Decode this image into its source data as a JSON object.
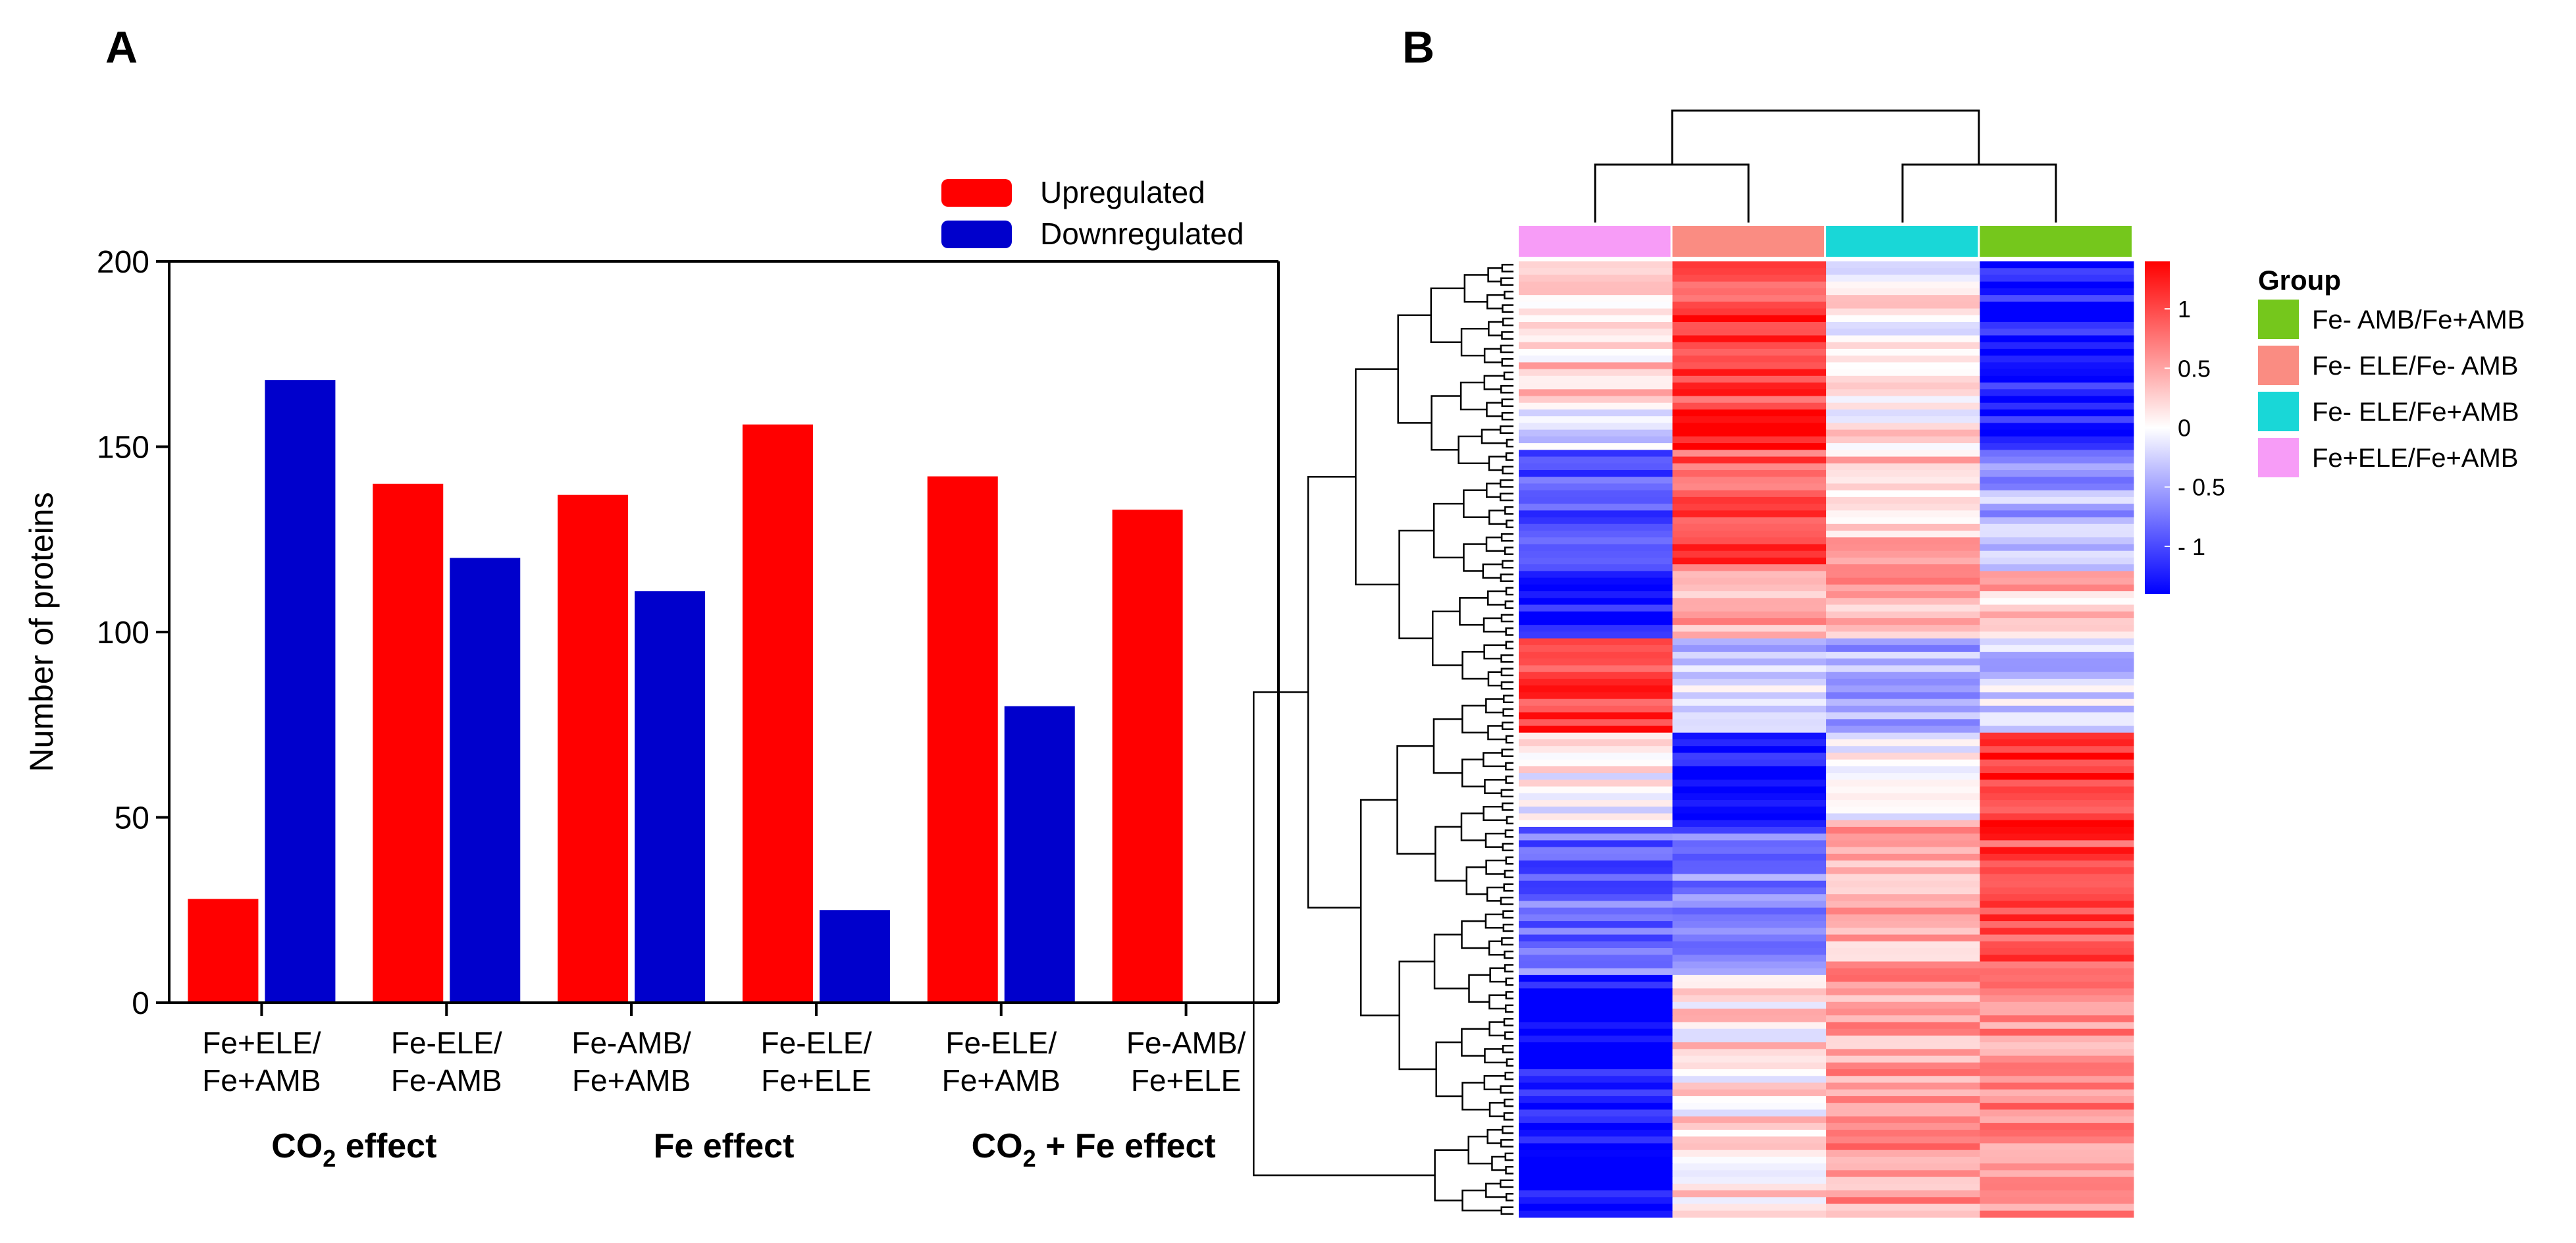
{
  "chart_data": [
    {
      "panel": "A",
      "type": "bar",
      "ylabel": "Number of proteins",
      "xlabel": "",
      "ylim": [
        0,
        200
      ],
      "yticks": [
        0,
        50,
        100,
        150,
        200
      ],
      "grid": false,
      "legend_position": "top-right",
      "categories": [
        [
          "Fe+ELE/",
          "Fe+AMB"
        ],
        [
          "Fe-ELE/",
          "Fe-AMB"
        ],
        [
          "Fe-AMB/",
          "Fe+AMB"
        ],
        [
          "Fe-ELE/",
          "Fe+ELE"
        ],
        [
          "Fe-ELE/",
          "Fe+AMB"
        ],
        [
          "Fe-AMB/",
          "Fe+ELE"
        ]
      ],
      "series": [
        {
          "name": "Upregulated",
          "color": "#ff0000",
          "values": [
            28,
            140,
            137,
            156,
            142,
            133
          ]
        },
        {
          "name": "Downregulated",
          "color": "#0000cc",
          "values": [
            168,
            120,
            111,
            25,
            80,
            0
          ]
        }
      ],
      "groups": [
        {
          "prefix": "CO",
          "sub": "2",
          "suffix": " effect",
          "categories": [
            0,
            1
          ]
        },
        {
          "prefix": "Fe effect",
          "sub": "",
          "suffix": "",
          "categories": [
            2,
            3
          ]
        },
        {
          "prefix": "CO",
          "sub": "2",
          "suffix": " + Fe effect",
          "categories": [
            4,
            5
          ]
        }
      ]
    },
    {
      "panel": "B",
      "type": "heatmap",
      "columns": [
        "Fe+ELE/Fe+AMB",
        "Fe- ELE/Fe- AMB",
        "Fe- ELE/Fe+AMB",
        "Fe- AMB/Fe+AMB"
      ],
      "column_colors": [
        "#f79cf7",
        "#fa8c82",
        "#19d7d7",
        "#75c71c"
      ],
      "colorbar": {
        "ticks": [
          1,
          0.5,
          0,
          -0.5,
          -1
        ],
        "tick_labels": [
          "1",
          "0.5",
          "0",
          "- 0.5",
          "- 1"
        ],
        "range": [
          -1.4,
          1.4
        ],
        "colors": [
          "#0000ff",
          "#ffffff",
          "#ff0000"
        ]
      },
      "legend_title": "Group",
      "legend_items": [
        {
          "label": "Fe- AMB/Fe+AMB",
          "color": "#75c71c"
        },
        {
          "label": "Fe- ELE/Fe- AMB",
          "color": "#fa8c82"
        },
        {
          "label": "Fe- ELE/Fe+AMB",
          "color": "#19d7d7"
        },
        {
          "label": "Fe+ELE/Fe+AMB",
          "color": "#f79cf7"
        }
      ],
      "row_blocks": [
        {
          "rows": 22,
          "values": [
            0.25,
            1.05,
            0.05,
            -1.3
          ]
        },
        {
          "rows": 6,
          "values": [
            -0.1,
            1.35,
            0.15,
            -1.35
          ]
        },
        {
          "rows": 18,
          "values": [
            -0.9,
            0.95,
            0.35,
            -0.45
          ]
        },
        {
          "rows": 10,
          "values": [
            -1.35,
            0.45,
            0.5,
            0.35
          ]
        },
        {
          "rows": 14,
          "values": [
            1.05,
            -0.25,
            -0.45,
            -0.25
          ]
        },
        {
          "rows": 14,
          "values": [
            0.05,
            -1.35,
            0.05,
            1.2
          ]
        },
        {
          "rows": 22,
          "values": [
            -0.8,
            -0.7,
            0.5,
            1.0
          ]
        },
        {
          "rows": 36,
          "values": [
            -1.35,
            0.15,
            0.55,
            0.65
          ]
        }
      ]
    }
  ],
  "panel_labels": {
    "a": "A",
    "b": "B"
  }
}
